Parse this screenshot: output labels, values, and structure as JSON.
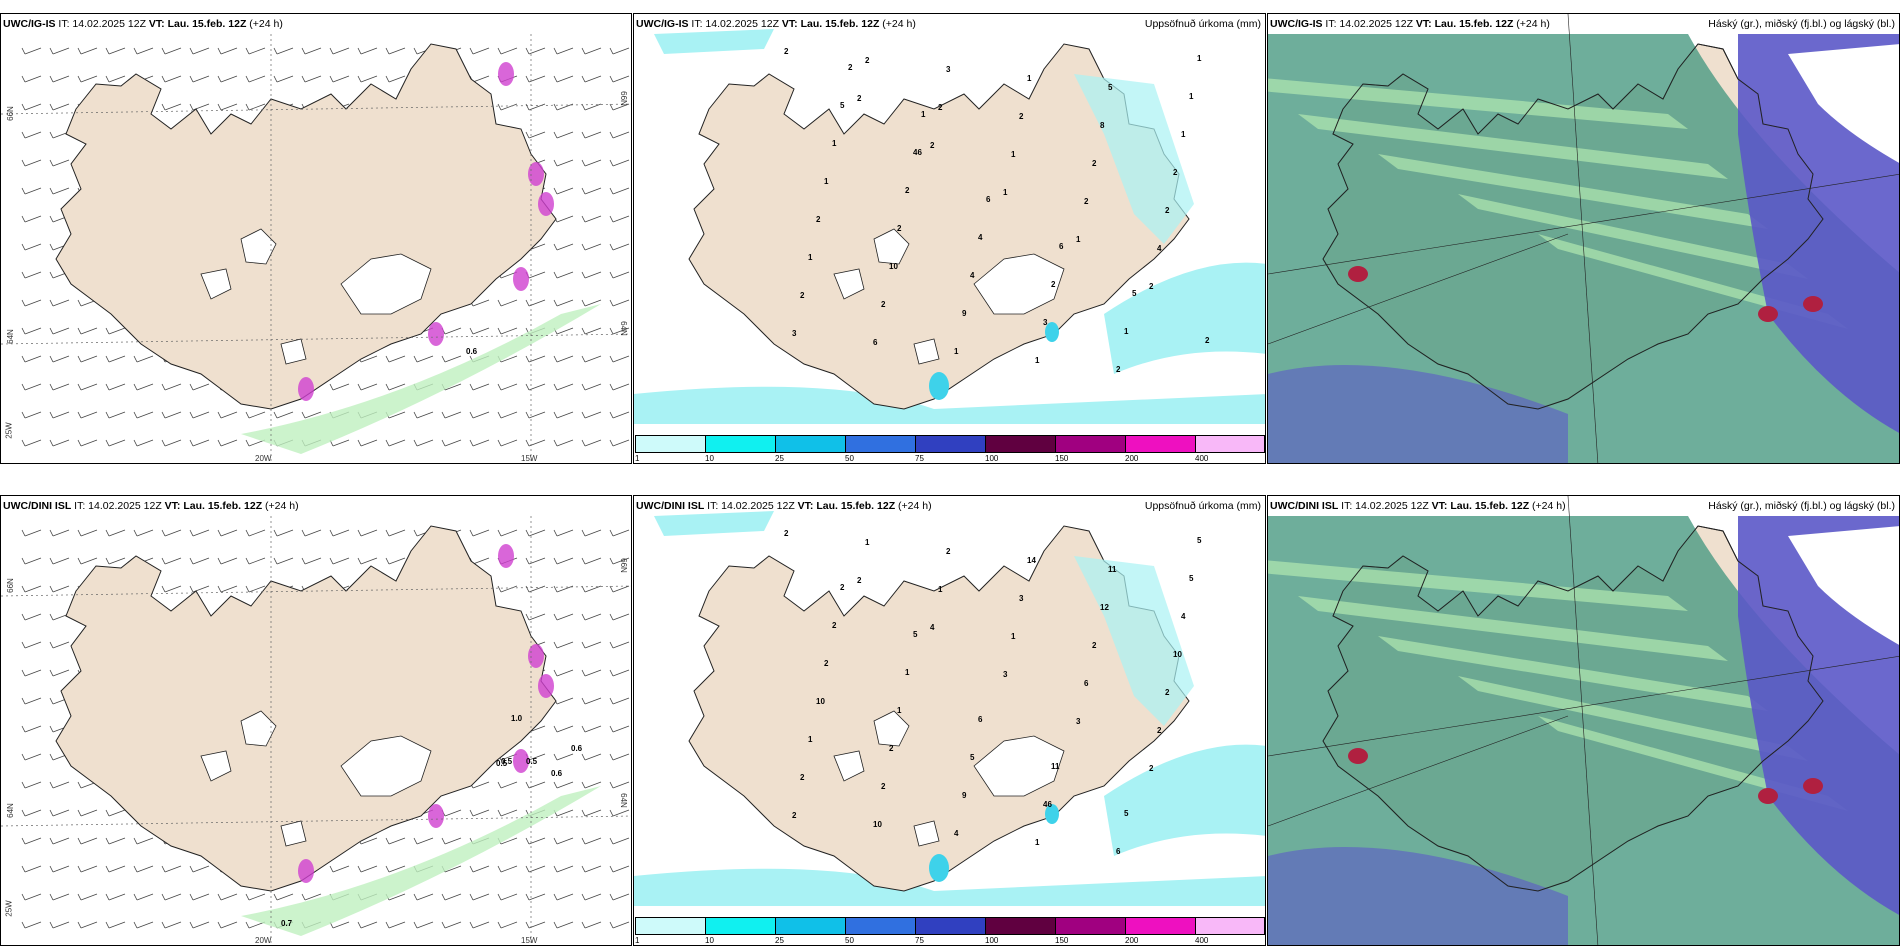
{
  "panels": [
    {
      "id": "wind-top",
      "model": "UWC/IG-IS",
      "it": "IT: 14.02.2025 12Z",
      "vt_label": "VT: Lau. 15.feb. 12Z",
      "lead": "(+24 h)",
      "right_title": "",
      "lat_labels": [
        "66N",
        "64N",
        "66N",
        "64N",
        "25W"
      ],
      "lon_labels": [
        "20W",
        "15W"
      ],
      "values": [
        "0.6"
      ]
    },
    {
      "id": "precip-top",
      "model": "UWC/IG-IS",
      "it": "IT: 14.02.2025 12Z",
      "vt_label": "VT: Lau. 15.feb. 12Z",
      "lead": "(+24 h)",
      "right_title": "Uppsöfnuð úrkoma (mm)",
      "values": [
        "2",
        "2",
        "2",
        "1",
        "1",
        "2",
        "3",
        "2",
        "2",
        "1",
        "2",
        "4",
        "2",
        "6",
        "3",
        "2",
        "2",
        "2",
        "1",
        "2",
        "1",
        "1",
        "8",
        "2",
        "2",
        "10",
        "9",
        "1",
        "5",
        "1",
        "1",
        "2",
        "4",
        "3",
        "2",
        "1",
        "1",
        "2",
        "4",
        "2",
        "1",
        "1",
        "5",
        "46",
        "6",
        "6",
        "5",
        "2",
        "2",
        "1"
      ]
    },
    {
      "id": "cloud-top",
      "model": "UWC/IG-IS",
      "it": "IT: 14.02.2025 12Z",
      "vt_label": "VT: Lau. 15.feb. 12Z",
      "lead": "(+24 h)",
      "right_title": "Háský (gr.), miðský (fj.bl.) og lágský (bl.)"
    },
    {
      "id": "wind-bottom",
      "model": "UWC/DINI ISL",
      "it": "IT: 14.02.2025 12Z",
      "vt_label": "VT: Lau. 15.feb. 12Z",
      "lead": "(+24 h)",
      "right_title": "",
      "lat_labels": [
        "66N",
        "64N",
        "66N",
        "64N",
        "25W"
      ],
      "lon_labels": [
        "20W",
        "15W"
      ],
      "values": [
        "1.0",
        "0.5",
        "0.6",
        "0.5",
        "0.5",
        "0.6",
        "0.7"
      ]
    },
    {
      "id": "precip-bottom",
      "model": "UWC/DINI ISL",
      "it": "IT: 14.02.2025 12Z",
      "vt_label": "VT: Lau. 15.feb. 12Z",
      "lead": "(+24 h)",
      "right_title": "Uppsöfnuð úrkoma (mm)",
      "values": [
        "2",
        "2",
        "4",
        "3",
        "3",
        "2",
        "2",
        "1",
        "1",
        "1",
        "6",
        "2",
        "2",
        "10",
        "2",
        "3",
        "2",
        "2",
        "1",
        "2",
        "4",
        "14",
        "12",
        "10",
        "10",
        "2",
        "9",
        "1",
        "11",
        "4",
        "2",
        "1",
        "5",
        "46",
        "6",
        "5",
        "2",
        "1",
        "6",
        "11",
        "5",
        "5",
        "2",
        "5"
      ]
    },
    {
      "id": "cloud-bottom",
      "model": "UWC/DINI ISL",
      "it": "IT: 14.02.2025 12Z",
      "vt_label": "VT: Lau. 15.feb. 12Z",
      "lead": "(+24 h)",
      "right_title": "Háský (gr.), miðský (fj.bl.) og lágský (bl.)"
    }
  ],
  "colorbar": {
    "ticks": [
      "1",
      "10",
      "25",
      "50",
      "75",
      "100",
      "150",
      "200",
      "400"
    ],
    "colors": [
      "#cefafa",
      "#10f0f0",
      "#10c0e8",
      "#3070e0",
      "#3040c0",
      "#600040",
      "#a00080",
      "#ee10c0",
      "#f8b8f8"
    ]
  },
  "colors": {
    "land": "#efe0cf",
    "precip_light": "#a9f2f4",
    "precip_mid": "#3ed2ea",
    "low_cloud": "#5b58c8",
    "mid_cloud": "#4a9a82",
    "high_cloud": "#b0e8b0",
    "ice_cap": "#ffffff"
  }
}
